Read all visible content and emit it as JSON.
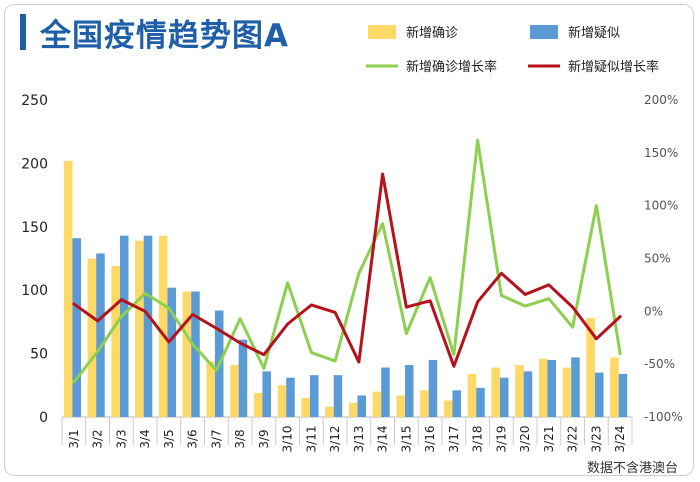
{
  "title": "全国疫情趋势图A",
  "source": "数据不含港澳台",
  "colors": {
    "confirmed_bar": "#FFD966",
    "suspected_bar": "#5B9BD5",
    "confirmed_rate": "#8DCF4F",
    "suspected_rate": "#B5121B"
  },
  "chart_data": {
    "type": "bar",
    "categories": [
      "3/1",
      "3/2",
      "3/3",
      "3/4",
      "3/5",
      "3/6",
      "3/7",
      "3/8",
      "3/9",
      "3/10",
      "3/11",
      "3/12",
      "3/13",
      "3/14",
      "3/15",
      "3/16",
      "3/17",
      "3/18",
      "3/19",
      "3/20",
      "3/21",
      "3/22",
      "3/23",
      "3/24"
    ],
    "series": [
      {
        "name": "新增确诊",
        "kind": "bar",
        "axis": "left",
        "values": [
          202,
          125,
          119,
          139,
          143,
          99,
          44,
          41,
          19,
          25,
          15,
          8,
          11,
          20,
          17,
          21,
          13,
          34,
          39,
          41,
          46,
          39,
          78,
          47
        ]
      },
      {
        "name": "新增疑似",
        "kind": "bar",
        "axis": "left",
        "values": [
          141,
          129,
          143,
          143,
          102,
          99,
          84,
          61,
          36,
          31,
          33,
          33,
          17,
          39,
          41,
          45,
          21,
          23,
          31,
          36,
          45,
          47,
          35,
          34
        ]
      },
      {
        "name": "新增确诊增长率",
        "kind": "line",
        "axis": "right",
        "values": [
          -67,
          -38,
          -5,
          17,
          3,
          -31,
          -56,
          -7,
          -54,
          27,
          -39,
          -47,
          36,
          83,
          -21,
          32,
          -41,
          162,
          15,
          5,
          12,
          -15,
          100,
          -40
        ]
      },
      {
        "name": "新增疑似增长率",
        "kind": "line",
        "axis": "right",
        "values": [
          7,
          -9,
          11,
          0,
          -29,
          -3,
          -16,
          -30,
          -41,
          -12,
          6,
          -1,
          -48,
          130,
          4,
          10,
          -52,
          9,
          36,
          16,
          25,
          4,
          -26,
          -5
        ]
      }
    ],
    "y_left": {
      "min": 0,
      "max": 250,
      "ticks": [
        0,
        50,
        100,
        150,
        200,
        250
      ]
    },
    "y_right": {
      "min": -100,
      "max": 200,
      "ticks": [
        "-100%",
        "-50%",
        "0%",
        "50%",
        "100%",
        "150%",
        "200%"
      ]
    },
    "legend_position": "top-right",
    "grid": false
  }
}
